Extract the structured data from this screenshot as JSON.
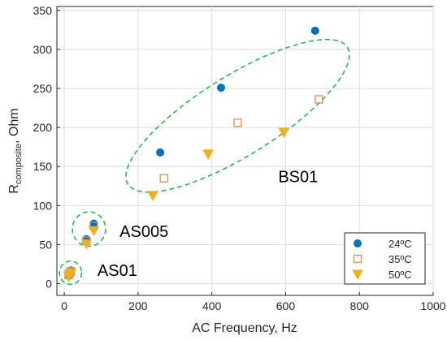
{
  "chart_data": {
    "type": "scatter",
    "xlabel": "AC Frequency, Hz",
    "ylabel_main": "R",
    "ylabel_sub": "composite",
    "ylabel_tail": ", Ohm",
    "xlim": [
      -20,
      1000
    ],
    "ylim": [
      -15,
      355
    ],
    "xticks": [
      0,
      200,
      400,
      600,
      800,
      1000
    ],
    "yticks": [
      0,
      50,
      100,
      150,
      200,
      250,
      300,
      350
    ],
    "grid": true,
    "legend_position": "bottom-right",
    "series": [
      {
        "name": "24ºC",
        "marker": "circle",
        "color": "#0072BD",
        "points": [
          [
            12,
            10
          ],
          [
            15,
            14
          ],
          [
            18,
            17
          ],
          [
            60,
            57
          ],
          [
            80,
            77
          ],
          [
            260,
            168
          ],
          [
            425,
            251
          ],
          [
            680,
            324
          ]
        ]
      },
      {
        "name": "35ºC",
        "marker": "square-open",
        "color": "#E58A5B",
        "points": [
          [
            12,
            11
          ],
          [
            15,
            14
          ],
          [
            18,
            16
          ],
          [
            60,
            55
          ],
          [
            80,
            74
          ],
          [
            270,
            135
          ],
          [
            470,
            206
          ],
          [
            690,
            236
          ]
        ]
      },
      {
        "name": "50ºC",
        "marker": "triangle-down",
        "color": "#EDB120",
        "points": [
          [
            12,
            9
          ],
          [
            15,
            12
          ],
          [
            18,
            14
          ],
          [
            60,
            51
          ],
          [
            80,
            68
          ],
          [
            240,
            113
          ],
          [
            390,
            166
          ],
          [
            595,
            194
          ]
        ]
      }
    ],
    "annotations": [
      {
        "text": "BS01",
        "x": 580,
        "y": 130
      },
      {
        "text": "AS005",
        "x": 150,
        "y": 60
      },
      {
        "text": "AS01",
        "x": 90,
        "y": 10
      }
    ],
    "groups": [
      {
        "name": "BS01-ellipse",
        "cx": 470,
        "cy": 215,
        "rx": 305,
        "ry": 90,
        "angle": 20
      },
      {
        "name": "AS005-ellipse",
        "cx": 67,
        "cy": 70,
        "rx": 45,
        "ry": 22,
        "angle": 0
      },
      {
        "name": "AS01-ellipse",
        "cx": 17,
        "cy": 14,
        "rx": 30,
        "ry": 15,
        "angle": 0
      }
    ]
  }
}
